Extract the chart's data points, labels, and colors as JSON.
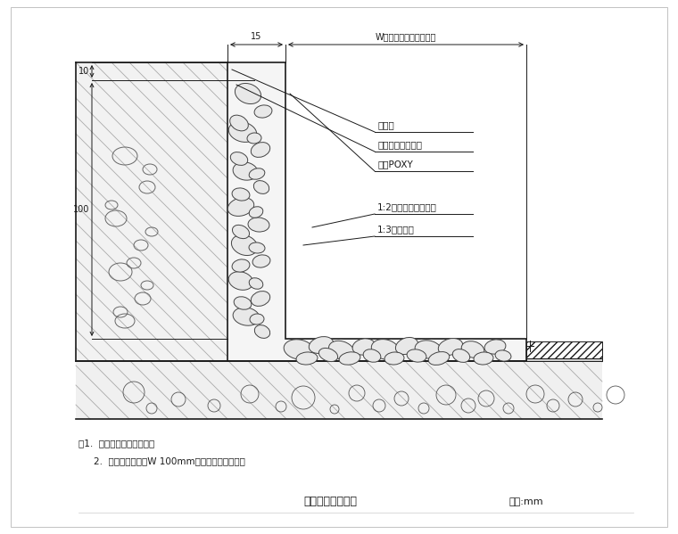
{
  "title": "粉石子踢脚大样图",
  "unit_label": "单位:mm",
  "note1": "注1.  粉石子采天然彩色石。",
  "note2": "2.  粉样粉石子数遇W 100mm平板者平分割调整。",
  "label1": "粉面层",
  "label2": "网格刷涂一底二度",
  "label3": "涂板POXY",
  "label4": "1:2水泥粉天然彩石粉",
  "label5": "1:3水泥粉刷",
  "dim_15": "15",
  "dim_W": "W（另详平面示意详图）",
  "dim_10": "10",
  "dim_100": "100",
  "bg_color": "#ffffff",
  "line_color": "#1a1a1a",
  "hatch_color": "#888888"
}
